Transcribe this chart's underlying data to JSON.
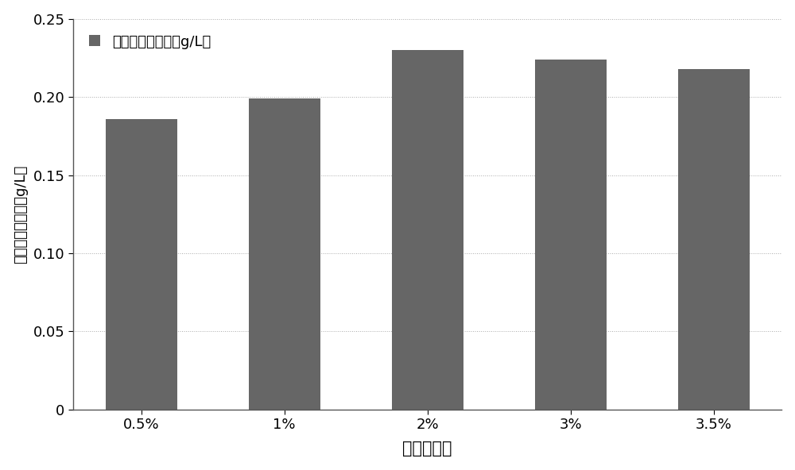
{
  "categories": [
    "0.5%",
    "1%",
    "2%",
    "3%",
    "3.5%"
  ],
  "values": [
    0.186,
    0.199,
    0.23,
    0.224,
    0.218
  ],
  "bar_color": "#666666",
  "xlabel": "葡萄糖浓度",
  "ylabel": "共轭亚油酸产量（g/L）",
  "legend_label": "共轭亚油酸产量（g/L）",
  "ylim": [
    0,
    0.25
  ],
  "yticks": [
    0,
    0.05,
    0.1,
    0.15,
    0.2,
    0.25
  ],
  "background_color": "#ffffff",
  "bar_width": 0.5,
  "xlabel_fontsize": 15,
  "ylabel_fontsize": 13,
  "tick_fontsize": 13,
  "legend_fontsize": 13
}
